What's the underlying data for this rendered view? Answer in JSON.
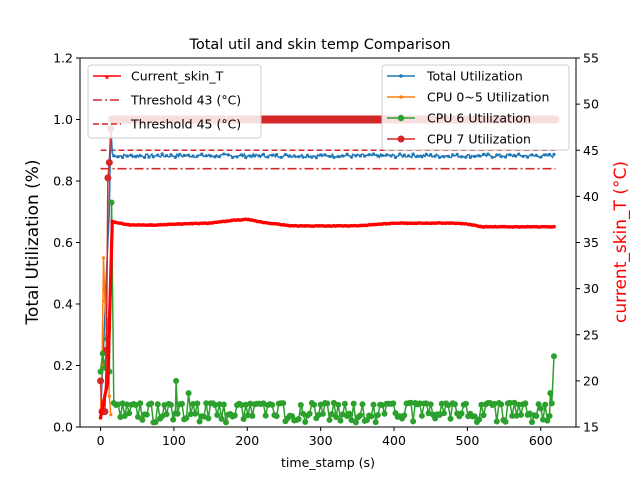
{
  "chart_data": {
    "type": "line",
    "title": "Total util and skin temp Comparison",
    "xlabel": "time_stamp (s)",
    "ylabel_left": "Total Utilization (%)",
    "ylabel_right": "current_skin_T (°C)",
    "xlim": [
      -28,
      648
    ],
    "ylim_left": [
      0,
      1.2
    ],
    "ylim_right": [
      15,
      55
    ],
    "x_ticks": [
      0,
      100,
      200,
      300,
      400,
      500,
      600
    ],
    "y_ticks_left": [
      "0.0",
      "0.2",
      "0.4",
      "0.6",
      "0.8",
      "1.0",
      "1.2"
    ],
    "y_ticks_right": [
      "15",
      "20",
      "25",
      "30",
      "35",
      "40",
      "45",
      "50",
      "55"
    ],
    "grid": false,
    "colors": {
      "total": "#1f77b4",
      "cpu05": "#ff7f0e",
      "cpu6": "#2ca02c",
      "cpu7": "#d62728",
      "skin": "#ff0000",
      "threshold": "#d62728",
      "right_axis_label": "#ff0000"
    },
    "legend_right": {
      "position": "upper-right",
      "entries": [
        "Total Utilization",
        "CPU 0~5 Utilization",
        "CPU 6 Utilization",
        "CPU 7 Utilization"
      ]
    },
    "legend_left": {
      "position": "upper-left",
      "entries": [
        "Current_skin_T",
        "Threshold 43 (°C)",
        "Threshold 45 (°C)"
      ]
    },
    "series": {
      "total_utilization": {
        "name": "Total Utilization",
        "steady": 0.882,
        "start_x": 18,
        "end_x": 618
      },
      "cpu05_utilization": {
        "name": "CPU 0~5 Utilization",
        "x": [
          0,
          2,
          4,
          6,
          8,
          10,
          12,
          14
        ],
        "y": [
          0.05,
          0.2,
          0.55,
          0.41,
          0.3,
          0.35,
          0.1,
          0.04
        ]
      },
      "cpu6_utilization": {
        "name": "CPU 6 Utilization",
        "spikes": [
          [
            0,
            0.18
          ],
          [
            15,
            0.73
          ],
          [
            103,
            0.15
          ],
          [
            120,
            0.11
          ],
          [
            600,
            0.06
          ],
          [
            613,
            0.11
          ],
          [
            618,
            0.23
          ]
        ],
        "baseline": 0.04,
        "high": 0.075
      },
      "cpu7_utilization": {
        "name": "CPU 7 Utilization",
        "x": [
          0,
          2,
          4,
          6,
          8,
          10,
          12,
          14,
          16,
          20,
          620
        ],
        "y": [
          0.15,
          0.05,
          0.05,
          0.05,
          0.25,
          0.81,
          0.86,
          0.97,
          1.0,
          1.0,
          1.0
        ]
      },
      "current_skin_t": {
        "name": "Current_skin_T",
        "x": [
          0,
          10,
          16,
          25,
          40,
          60,
          80,
          100,
          150,
          180,
          200,
          220,
          260,
          300,
          350,
          400,
          450,
          480,
          500,
          520,
          560,
          600,
          620
        ],
        "y": [
          16,
          20,
          37.3,
          37.1,
          36.9,
          36.9,
          36.9,
          37.0,
          37.1,
          37.4,
          37.5,
          37.2,
          36.8,
          36.8,
          36.8,
          37.1,
          37.1,
          37.1,
          37.0,
          36.7,
          36.7,
          36.7,
          36.7
        ]
      },
      "threshold_43": {
        "name": "Threshold 43 (°C)",
        "value": 43,
        "x_start": 0,
        "x_end": 620
      },
      "threshold_45": {
        "name": "Threshold 45 (°C)",
        "value": 45,
        "x_start": 0,
        "x_end": 620
      }
    }
  }
}
